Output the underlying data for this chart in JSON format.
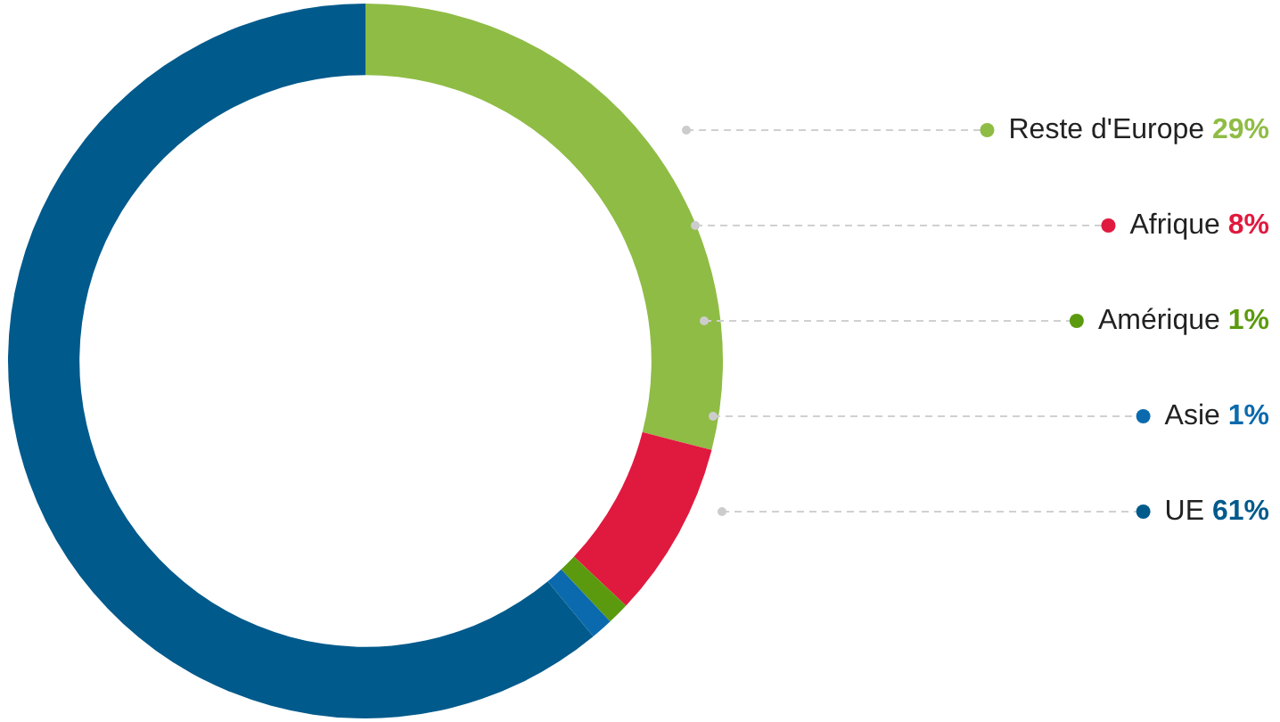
{
  "chart_data": {
    "type": "donut",
    "categories": [
      "Reste d'Europe",
      "Afrique",
      "Amérique",
      "Asie",
      "UE"
    ],
    "values": [
      29,
      8,
      1,
      1,
      61
    ],
    "value_labels": [
      "29%",
      "8%",
      "1%",
      "1%",
      "61%"
    ],
    "colors": [
      "#8fbc45",
      "#e0193f",
      "#5b9a0e",
      "#0a6aad",
      "#005a8c"
    ],
    "legend": "right"
  }
}
